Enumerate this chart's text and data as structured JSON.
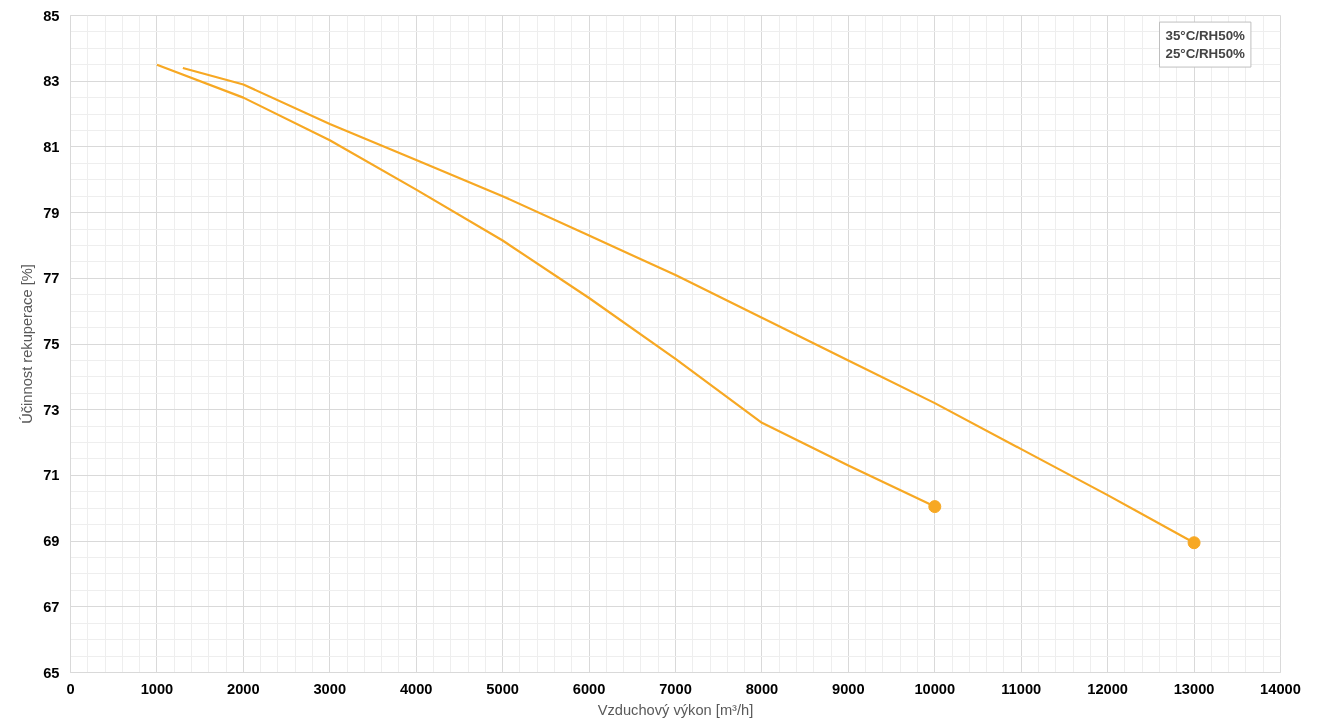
{
  "chart_data": {
    "type": "line",
    "xlabel": "Vzduchový výkon [m³/h]",
    "ylabel": "Účinnost rekuperace [%]",
    "xlim": [
      0,
      14000
    ],
    "xticks": [
      0,
      1000,
      2000,
      3000,
      4000,
      5000,
      6000,
      7000,
      8000,
      9000,
      10000,
      11000,
      12000,
      13000,
      14000
    ],
    "ylim": [
      65,
      85
    ],
    "yticks": [
      65,
      67,
      69,
      71,
      73,
      75,
      77,
      79,
      81,
      83,
      85
    ],
    "grid": true,
    "annotations": [
      "35°C/RH50%\n25°C/RH50%"
    ],
    "series": [
      {
        "color": "#f7a823",
        "x": [
          1000,
          2000,
          3000,
          4000,
          5000,
          6000,
          7000,
          8000,
          9000,
          10000
        ],
        "values": [
          83.5,
          82.5,
          81.2,
          79.7,
          78.15,
          76.4,
          74.55,
          72.6,
          71.3,
          70.05
        ]
      },
      {
        "color": "#f7a823",
        "x": [
          1300,
          2000,
          3000,
          4000,
          5000,
          6000,
          7000,
          8000,
          9000,
          10000,
          11000,
          12000,
          13000
        ],
        "values": [
          83.4,
          82.9,
          81.7,
          80.6,
          79.5,
          78.3,
          77.1,
          75.8,
          74.5,
          73.2,
          71.8,
          70.4,
          68.95
        ]
      },
      {
        "type": "scatter",
        "marker": "circle",
        "color": "#f7a823",
        "x": [
          10000
        ],
        "values": [
          70.05
        ]
      },
      {
        "type": "scatter",
        "marker": "circle",
        "color": "#f7a823",
        "x": [
          13000
        ],
        "values": [
          68.95
        ]
      }
    ]
  }
}
